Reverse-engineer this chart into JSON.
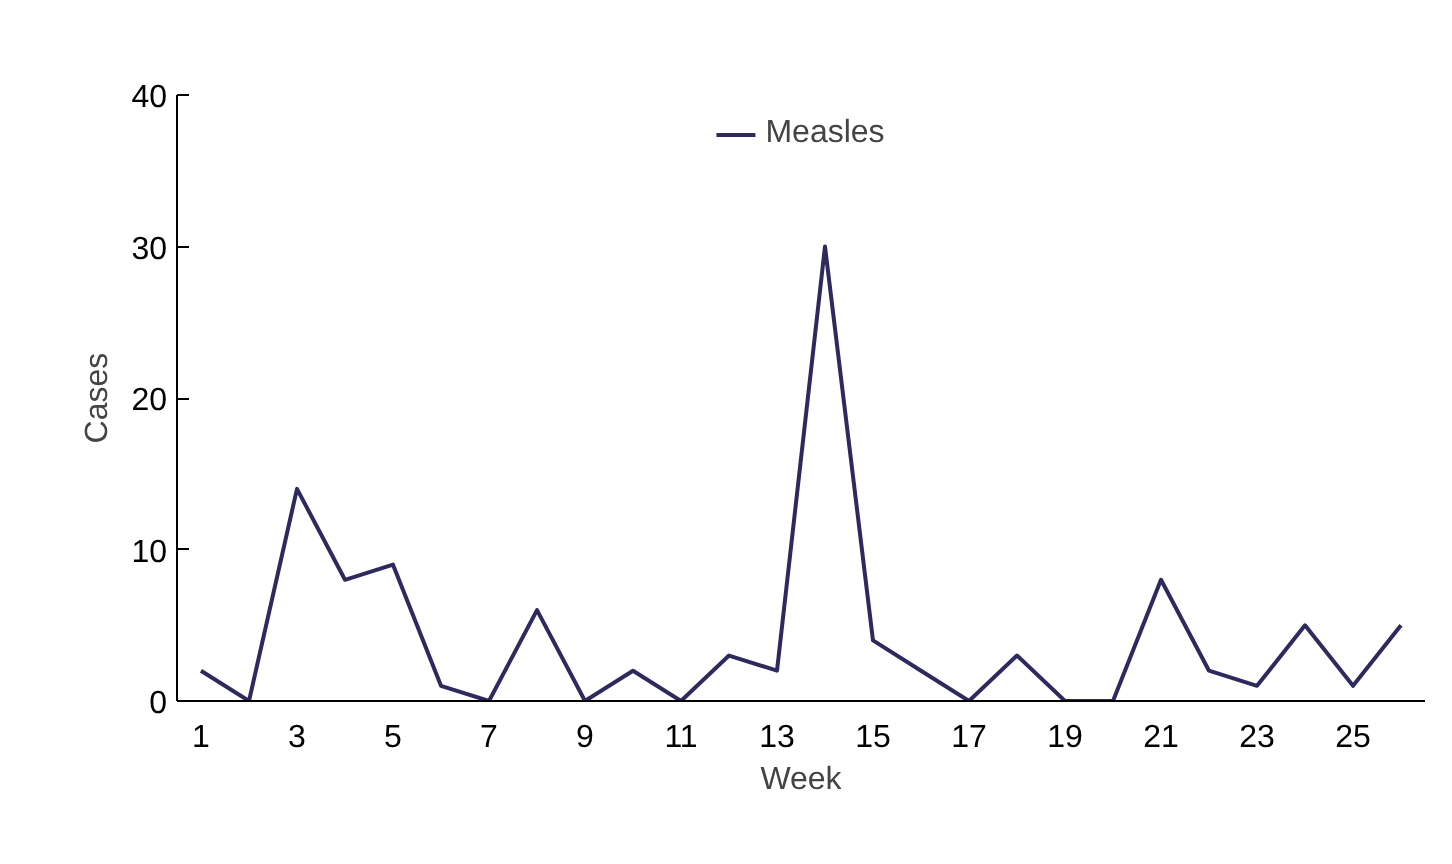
{
  "chart_data": {
    "type": "line",
    "xlabel": "Week",
    "ylabel": "Cases",
    "x": [
      1,
      2,
      3,
      4,
      5,
      6,
      7,
      8,
      9,
      10,
      11,
      12,
      13,
      14,
      15,
      16,
      17,
      18,
      19,
      20,
      21,
      22,
      23,
      24,
      25,
      26
    ],
    "series": [
      {
        "name": "Measles",
        "color": "#2e2a5e",
        "values": [
          2,
          0,
          14,
          8,
          9,
          1,
          0,
          6,
          0,
          2,
          0,
          3,
          2,
          30,
          4,
          2,
          0,
          3,
          0,
          0,
          8,
          2,
          1,
          5,
          1,
          5
        ]
      }
    ],
    "xlim": [
      0.5,
      26.5
    ],
    "xticks": [
      1,
      3,
      5,
      7,
      9,
      11,
      13,
      15,
      17,
      19,
      21,
      23,
      25
    ],
    "ylim": [
      0,
      40
    ],
    "yticks": [
      0,
      10,
      20,
      30,
      40
    ],
    "grid": false,
    "legend": "top",
    "marker": "none",
    "line_style": "solid"
  }
}
